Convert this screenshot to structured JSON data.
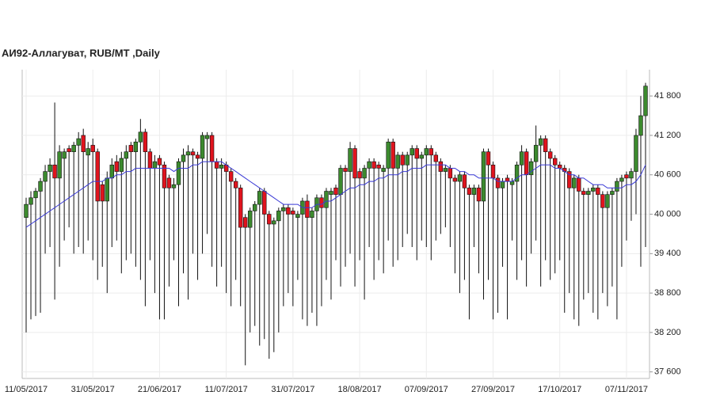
{
  "chart_data": {
    "type": "candlestick",
    "title": "АИ92-Аллагуват,  RUB/MT ,Daily",
    "categories": [
      "11/05/2017",
      null,
      null,
      null,
      null,
      null,
      null,
      null,
      null,
      null,
      null,
      null,
      null,
      null,
      "31/05/2017",
      null,
      null,
      null,
      null,
      null,
      null,
      null,
      null,
      null,
      null,
      null,
      null,
      null,
      "21/06/2017",
      null,
      null,
      null,
      null,
      null,
      null,
      null,
      null,
      null,
      null,
      null,
      null,
      null,
      "11/07/2017",
      null,
      null,
      null,
      null,
      null,
      null,
      null,
      null,
      null,
      null,
      null,
      null,
      null,
      "31/07/2017",
      null,
      null,
      null,
      null,
      null,
      null,
      null,
      null,
      null,
      null,
      null,
      null,
      null,
      "18/08/2017",
      null,
      null,
      null,
      null,
      null,
      null,
      null,
      null,
      null,
      null,
      null,
      null,
      null,
      "07/09/2017",
      null,
      null,
      null,
      null,
      null,
      null,
      null,
      null,
      null,
      null,
      null,
      null,
      null,
      "27/09/2017",
      null,
      null,
      null,
      null,
      null,
      null,
      null,
      null,
      null,
      null,
      null,
      null,
      null,
      "17/10/2017",
      null,
      null,
      null,
      null,
      null,
      null,
      null,
      null,
      null,
      null,
      null,
      null,
      null,
      "07/11/2017",
      null,
      null,
      null,
      null
    ],
    "open": [
      39950,
      40150,
      40250,
      40350,
      40500,
      40650,
      40750,
      40550,
      40850,
      41000,
      40950,
      41050,
      41200,
      40900,
      41050,
      40950,
      40450,
      40200,
      40550,
      40800,
      40650,
      40850,
      41050,
      40950,
      41100,
      41250,
      40950,
      40700,
      40850,
      40750,
      40550,
      40400,
      40450,
      40800,
      40900,
      40950,
      40900,
      40850,
      41150,
      41200,
      40800,
      40700,
      40750,
      40650,
      40500,
      40400,
      39950,
      39800,
      40050,
      40150,
      40350,
      40000,
      39850,
      39900,
      40050,
      40100,
      40050,
      39950,
      40000,
      40200,
      39950,
      40050,
      40250,
      40100,
      40300,
      40400,
      40300,
      40700,
      40650,
      41000,
      40650,
      40550,
      40700,
      40800,
      40750,
      40650,
      40700,
      41100,
      40700,
      40900,
      40750,
      40900,
      41000,
      40850,
      40900,
      41000,
      40900,
      40800,
      40650,
      40700,
      40550,
      40500,
      40600,
      40400,
      40300,
      40400,
      40200,
      40950,
      40750,
      40550,
      40400,
      40550,
      40450,
      40500,
      40750,
      40950,
      40600,
      40800,
      41050,
      41150,
      40950,
      40850,
      40750,
      40700,
      40650,
      40400,
      40550,
      40350,
      40300,
      40350,
      40400,
      40300,
      40100,
      40300,
      40350,
      40500,
      40600,
      40550,
      40650,
      41200,
      41500
    ],
    "high": [
      40250,
      40350,
      40400,
      40550,
      40750,
      40850,
      41700,
      41050,
      41000,
      41050,
      41100,
      41250,
      41300,
      41100,
      41150,
      41000,
      40500,
      40650,
      40850,
      40900,
      40950,
      41050,
      41100,
      41150,
      41450,
      41300,
      41000,
      40900,
      40900,
      40800,
      40600,
      40550,
      40850,
      41000,
      41050,
      41000,
      40950,
      41250,
      41250,
      41250,
      40850,
      40850,
      40800,
      40700,
      40550,
      40450,
      40000,
      40100,
      40200,
      40400,
      40400,
      40050,
      39950,
      40100,
      40150,
      40150,
      40100,
      40050,
      40250,
      40300,
      40100,
      40300,
      40300,
      40400,
      40400,
      40450,
      40750,
      40750,
      41100,
      41050,
      40700,
      40750,
      40850,
      40850,
      40800,
      40750,
      41150,
      41150,
      40950,
      40950,
      40950,
      41050,
      41050,
      40950,
      41050,
      41050,
      40950,
      40850,
      40750,
      40750,
      40600,
      40650,
      40650,
      40450,
      40450,
      40450,
      41000,
      41000,
      40800,
      40600,
      40550,
      40600,
      40550,
      40800,
      41050,
      41000,
      40850,
      41350,
      41200,
      41200,
      41000,
      40900,
      40800,
      40750,
      40700,
      40600,
      40600,
      40400,
      40400,
      40450,
      40450,
      40350,
      40350,
      40400,
      40550,
      40600,
      40650,
      40700,
      41300,
      41800,
      42000
    ],
    "low": [
      38200,
      38400,
      38450,
      38500,
      39400,
      39500,
      38700,
      39200,
      39600,
      39800,
      39400,
      39500,
      39400,
      39600,
      39300,
      39000,
      39200,
      38800,
      39500,
      39600,
      39100,
      39300,
      39400,
      39200,
      39000,
      38600,
      39300,
      38800,
      38400,
      38400,
      38900,
      39300,
      38600,
      39100,
      38700,
      39400,
      39000,
      39400,
      39700,
      39200,
      38900,
      39200,
      38800,
      38600,
      39000,
      38600,
      37700,
      38200,
      38300,
      38000,
      38100,
      37800,
      37900,
      38200,
      38600,
      38800,
      38600,
      39000,
      38400,
      38300,
      38500,
      38300,
      38600,
      39000,
      38700,
      39300,
      38900,
      39200,
      39400,
      38900,
      39300,
      38700,
      39500,
      39000,
      39300,
      39100,
      39600,
      39200,
      39300,
      39500,
      39700,
      39500,
      39300,
      39600,
      39500,
      39300,
      39600,
      39700,
      39800,
      39500,
      39100,
      38800,
      39000,
      38400,
      39500,
      39100,
      38700,
      39000,
      38400,
      38500,
      39200,
      38400,
      39600,
      39000,
      39300,
      38900,
      39400,
      39600,
      38900,
      39300,
      39000,
      39100,
      39300,
      38500,
      38800,
      38400,
      38300,
      38700,
      38800,
      38500,
      38400,
      38800,
      38600,
      38900,
      38400,
      39200,
      39600,
      39900,
      40000,
      39200,
      39500
    ],
    "close": [
      40150,
      40250,
      40350,
      40500,
      40650,
      40750,
      40550,
      40950,
      40950,
      40950,
      41050,
      41150,
      40950,
      41000,
      40950,
      40200,
      40200,
      40550,
      40750,
      40650,
      40850,
      40950,
      40950,
      41100,
      41250,
      40950,
      40700,
      40800,
      40750,
      40400,
      40400,
      40450,
      40800,
      40900,
      40950,
      40900,
      40850,
      41200,
      41200,
      40800,
      40700,
      40750,
      40650,
      40500,
      40400,
      39800,
      39800,
      40050,
      40150,
      40350,
      40000,
      39850,
      39900,
      40050,
      40100,
      40000,
      40000,
      40000,
      40200,
      39950,
      40050,
      40250,
      40100,
      40350,
      40350,
      40300,
      40700,
      40650,
      41000,
      40550,
      40550,
      40700,
      40800,
      40700,
      40700,
      40700,
      41100,
      40700,
      40900,
      40750,
      40900,
      41000,
      40850,
      40900,
      41000,
      40900,
      40800,
      40650,
      40700,
      40550,
      40500,
      40600,
      40400,
      40300,
      40400,
      40200,
      40950,
      40750,
      40550,
      40400,
      40500,
      40500,
      40500,
      40750,
      40950,
      40600,
      40800,
      41050,
      41150,
      40950,
      40850,
      40750,
      40700,
      40650,
      40400,
      40550,
      40350,
      40300,
      40350,
      40400,
      40300,
      40100,
      40300,
      40350,
      40500,
      40550,
      40550,
      40650,
      41200,
      41500,
      41950
    ],
    "ma": [
      39800,
      39850,
      39900,
      39950,
      40000,
      40050,
      40100,
      40150,
      40200,
      40250,
      40300,
      40350,
      40400,
      40450,
      40500,
      40500,
      40500,
      40550,
      40550,
      40600,
      40600,
      40650,
      40650,
      40700,
      40700,
      40700,
      40700,
      40700,
      40700,
      40700,
      40700,
      40650,
      40700,
      40700,
      40700,
      40750,
      40750,
      40800,
      40800,
      40800,
      40800,
      40800,
      40750,
      40700,
      40650,
      40600,
      40550,
      40500,
      40450,
      40400,
      40350,
      40300,
      40250,
      40200,
      40150,
      40150,
      40150,
      40150,
      40100,
      40100,
      40100,
      40150,
      40150,
      40200,
      40200,
      40250,
      40300,
      40350,
      40400,
      40400,
      40450,
      40450,
      40500,
      40500,
      40550,
      40550,
      40600,
      40600,
      40600,
      40650,
      40650,
      40700,
      40700,
      40700,
      40750,
      40750,
      40750,
      40750,
      40750,
      40700,
      40700,
      40650,
      40650,
      40600,
      40600,
      40550,
      40550,
      40550,
      40550,
      40500,
      40500,
      40500,
      40500,
      40550,
      40600,
      40600,
      40650,
      40700,
      40750,
      40750,
      40750,
      40700,
      40700,
      40650,
      40600,
      40600,
      40550,
      40550,
      40500,
      40450,
      40450,
      40450,
      40400,
      40400,
      40400,
      40400,
      40450,
      40450,
      40500,
      40600,
      40750
    ],
    "up_color": "#3c8a2e",
    "down_color": "#e0141e",
    "ma_color": "#3a3ad6",
    "ylim": [
      37500,
      42200
    ],
    "yticks": [
      {
        "value": 37600,
        "label": "37 600"
      },
      {
        "value": 38200,
        "label": "38 200"
      },
      {
        "value": 38800,
        "label": "38 800"
      },
      {
        "value": 39400,
        "label": "39 400"
      },
      {
        "value": 40000,
        "label": "40 000"
      },
      {
        "value": 40600,
        "label": "40 600"
      },
      {
        "value": 41200,
        "label": "41 200"
      },
      {
        "value": 41800,
        "label": "41 800"
      }
    ],
    "grid": true
  }
}
